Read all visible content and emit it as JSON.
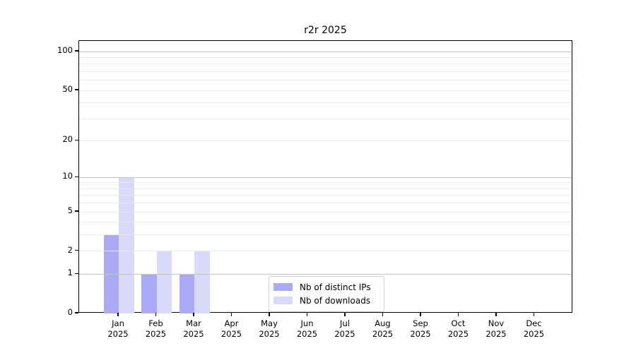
{
  "figure": {
    "title": "r2r 2025"
  },
  "chart_data": {
    "type": "bar",
    "title": "r2r 2025",
    "months": [
      "Jan",
      "Feb",
      "Mar",
      "Apr",
      "May",
      "Jun",
      "Jul",
      "Aug",
      "Sep",
      "Oct",
      "Nov",
      "Dec"
    ],
    "year": "2025",
    "series": [
      {
        "name": "Nb of distinct IPs",
        "color": "#aaaaf7",
        "values": [
          3,
          1,
          1,
          0,
          0,
          0,
          0,
          0,
          0,
          0,
          0,
          0
        ]
      },
      {
        "name": "Nb of downloads",
        "color": "#d9d9f9",
        "values": [
          10,
          2,
          2,
          0,
          0,
          0,
          0,
          0,
          0,
          0,
          0,
          0
        ]
      }
    ],
    "yscale": "log1p",
    "ylim": [
      0,
      121
    ],
    "y_tick_values": [
      0,
      1,
      2,
      5,
      10,
      20,
      50,
      100
    ],
    "grid": {
      "major_values": [
        1,
        10,
        100
      ],
      "minor_values": [
        2,
        3,
        4,
        5,
        6,
        7,
        8,
        9,
        20,
        30,
        40,
        50,
        60,
        70,
        80,
        90
      ],
      "major_color": "#c3c3c3",
      "minor_color": "#eaeaea"
    },
    "legend_position": "lower center"
  }
}
